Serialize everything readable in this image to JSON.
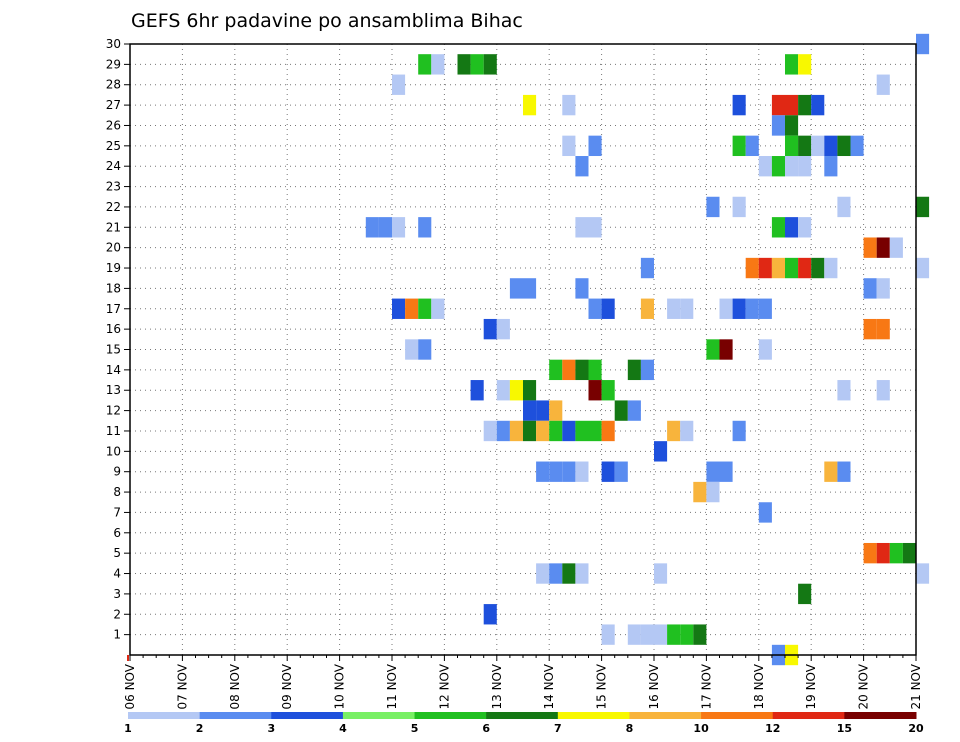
{
  "chart_data": {
    "type": "heatmap",
    "title": "GEFS 6hr padavine po ansamblima Bihac",
    "xlabel": "",
    "ylabel": "",
    "x_ticks": [
      "06 NOV",
      "07 NOV",
      "08 NOV",
      "09 NOV",
      "10 NOV",
      "11 NOV",
      "12 NOV",
      "13 NOV",
      "14 NOV",
      "15 NOV",
      "16 NOV",
      "17 NOV",
      "18 NOV",
      "19 NOV",
      "20 NOV",
      "21 NOV"
    ],
    "x_range_days": [
      6,
      21
    ],
    "y_ticks": [
      1,
      2,
      3,
      4,
      5,
      6,
      7,
      8,
      9,
      10,
      11,
      12,
      13,
      14,
      15,
      16,
      17,
      18,
      19,
      20,
      21,
      22,
      23,
      24,
      25,
      26,
      27,
      28,
      29,
      30
    ],
    "y_range": [
      0,
      30
    ],
    "grid": true,
    "colorbar": {
      "labels": [
        "1",
        "2",
        "3",
        "4",
        "5",
        "6",
        "7",
        "8",
        "10",
        "12",
        "15",
        "20"
      ],
      "colors": [
        "#b4c8f4",
        "#5a8cf0",
        "#1e50dc",
        "#78f064",
        "#20c020",
        "#147814",
        "#f8f800",
        "#f8b43c",
        "#f87814",
        "#e02814",
        "#780000"
      ]
    },
    "cells": [
      [
        29,
        11.5,
        5
      ],
      [
        29,
        11.75,
        1
      ],
      [
        29,
        12.25,
        6
      ],
      [
        29,
        12.5,
        5
      ],
      [
        29,
        12.75,
        6
      ],
      [
        29,
        18.5,
        5
      ],
      [
        29,
        18.75,
        7
      ],
      [
        28,
        11,
        1
      ],
      [
        28,
        20.25,
        1
      ],
      [
        27,
        13.5,
        7
      ],
      [
        27,
        14.25,
        1
      ],
      [
        27,
        17.5,
        3
      ],
      [
        27,
        18.25,
        10
      ],
      [
        27,
        18.5,
        10
      ],
      [
        27,
        18.75,
        6
      ],
      [
        27,
        19,
        3
      ],
      [
        26,
        18.25,
        2
      ],
      [
        26,
        18.5,
        6
      ],
      [
        25,
        14.25,
        1
      ],
      [
        25,
        14.75,
        2
      ],
      [
        25,
        17.5,
        5
      ],
      [
        25,
        17.75,
        2
      ],
      [
        25,
        18.5,
        5
      ],
      [
        25,
        18.75,
        6
      ],
      [
        25,
        19,
        1
      ],
      [
        25,
        19.25,
        3
      ],
      [
        25,
        19.5,
        6
      ],
      [
        25,
        19.75,
        2
      ],
      [
        24,
        14.5,
        2
      ],
      [
        24,
        18,
        1
      ],
      [
        24,
        18.25,
        5
      ],
      [
        24,
        18.5,
        1
      ],
      [
        24,
        18.75,
        1
      ],
      [
        24,
        19.25,
        2
      ],
      [
        22,
        17,
        2
      ],
      [
        22,
        17.5,
        1
      ],
      [
        22,
        19.5,
        1
      ],
      [
        22,
        21,
        6
      ],
      [
        21,
        10.5,
        2
      ],
      [
        21,
        10.75,
        2
      ],
      [
        21,
        11,
        1
      ],
      [
        21,
        11.5,
        2
      ],
      [
        21,
        14.5,
        1
      ],
      [
        21,
        14.75,
        1
      ],
      [
        21,
        18.25,
        5
      ],
      [
        21,
        18.5,
        3
      ],
      [
        21,
        18.75,
        1
      ],
      [
        20,
        20,
        9
      ],
      [
        20,
        20.25,
        11
      ],
      [
        20,
        20.5,
        1
      ],
      [
        19,
        15.75,
        2
      ],
      [
        19,
        17.75,
        9
      ],
      [
        19,
        18,
        10
      ],
      [
        19,
        18.25,
        8
      ],
      [
        19,
        18.5,
        5
      ],
      [
        19,
        18.75,
        10
      ],
      [
        19,
        19,
        6
      ],
      [
        19,
        19.25,
        1
      ],
      [
        19,
        21,
        1
      ],
      [
        18,
        13.25,
        2
      ],
      [
        18,
        13.5,
        2
      ],
      [
        18,
        14.5,
        2
      ],
      [
        18,
        20,
        2
      ],
      [
        18,
        20.25,
        1
      ],
      [
        17,
        11,
        3
      ],
      [
        17,
        11.25,
        9
      ],
      [
        17,
        11.5,
        5
      ],
      [
        17,
        11.75,
        1
      ],
      [
        17,
        14.75,
        2
      ],
      [
        17,
        15,
        3
      ],
      [
        17,
        15.75,
        8
      ],
      [
        17,
        16.25,
        1
      ],
      [
        17,
        16.5,
        1
      ],
      [
        17,
        17.25,
        1
      ],
      [
        17,
        17.5,
        3
      ],
      [
        17,
        17.75,
        2
      ],
      [
        17,
        18,
        2
      ],
      [
        16,
        12.75,
        3
      ],
      [
        16,
        13,
        1
      ],
      [
        16,
        20,
        9
      ],
      [
        16,
        20.25,
        9
      ],
      [
        15,
        11.25,
        1
      ],
      [
        15,
        11.5,
        2
      ],
      [
        15,
        17,
        5
      ],
      [
        15,
        17.25,
        11
      ],
      [
        15,
        18,
        1
      ],
      [
        14,
        14,
        5
      ],
      [
        14,
        14.25,
        9
      ],
      [
        14,
        14.5,
        6
      ],
      [
        14,
        14.75,
        5
      ],
      [
        14,
        15.5,
        6
      ],
      [
        14,
        15.75,
        2
      ],
      [
        13,
        12.5,
        3
      ],
      [
        13,
        13,
        1
      ],
      [
        13,
        13.25,
        7
      ],
      [
        13,
        13.5,
        6
      ],
      [
        13,
        14.75,
        11
      ],
      [
        13,
        15,
        5
      ],
      [
        13,
        19.5,
        1
      ],
      [
        13,
        20.25,
        1
      ],
      [
        12,
        13.5,
        3
      ],
      [
        12,
        13.75,
        3
      ],
      [
        12,
        14,
        8
      ],
      [
        12,
        15.25,
        6
      ],
      [
        12,
        15.5,
        2
      ],
      [
        11,
        12.75,
        1
      ],
      [
        11,
        13,
        2
      ],
      [
        11,
        13.25,
        8
      ],
      [
        11,
        13.5,
        6
      ],
      [
        11,
        13.75,
        8
      ],
      [
        11,
        14,
        5
      ],
      [
        11,
        14.25,
        3
      ],
      [
        11,
        14.5,
        5
      ],
      [
        11,
        14.75,
        5
      ],
      [
        11,
        15,
        9
      ],
      [
        11,
        16.25,
        8
      ],
      [
        11,
        16.5,
        1
      ],
      [
        11,
        17.5,
        2
      ],
      [
        10,
        16,
        3
      ],
      [
        9,
        13.75,
        2
      ],
      [
        9,
        14,
        2
      ],
      [
        9,
        14.25,
        2
      ],
      [
        9,
        14.5,
        1
      ],
      [
        9,
        15,
        3
      ],
      [
        9,
        15.25,
        2
      ],
      [
        9,
        17,
        2
      ],
      [
        9,
        17.25,
        2
      ],
      [
        9,
        19.25,
        8
      ],
      [
        9,
        19.5,
        2
      ],
      [
        8,
        16.75,
        8
      ],
      [
        8,
        17,
        1
      ],
      [
        7,
        18,
        2
      ],
      [
        5,
        20,
        9
      ],
      [
        5,
        20.25,
        10
      ],
      [
        5,
        20.5,
        5
      ],
      [
        5,
        20.75,
        6
      ],
      [
        4,
        13.75,
        1
      ],
      [
        4,
        14,
        2
      ],
      [
        4,
        14.25,
        6
      ],
      [
        4,
        14.5,
        1
      ],
      [
        4,
        16,
        1
      ],
      [
        4,
        21,
        1
      ],
      [
        3,
        18.75,
        6
      ],
      [
        2,
        12.75,
        3
      ],
      [
        1,
        15,
        1
      ],
      [
        1,
        15.5,
        1
      ],
      [
        1,
        15.75,
        1
      ],
      [
        1,
        16,
        1
      ],
      [
        1,
        16.25,
        5
      ],
      [
        1,
        16.5,
        5
      ],
      [
        1,
        16.75,
        6
      ],
      [
        0,
        18.25,
        2
      ],
      [
        0,
        18.5,
        7
      ],
      [
        30,
        21,
        2
      ]
    ]
  }
}
